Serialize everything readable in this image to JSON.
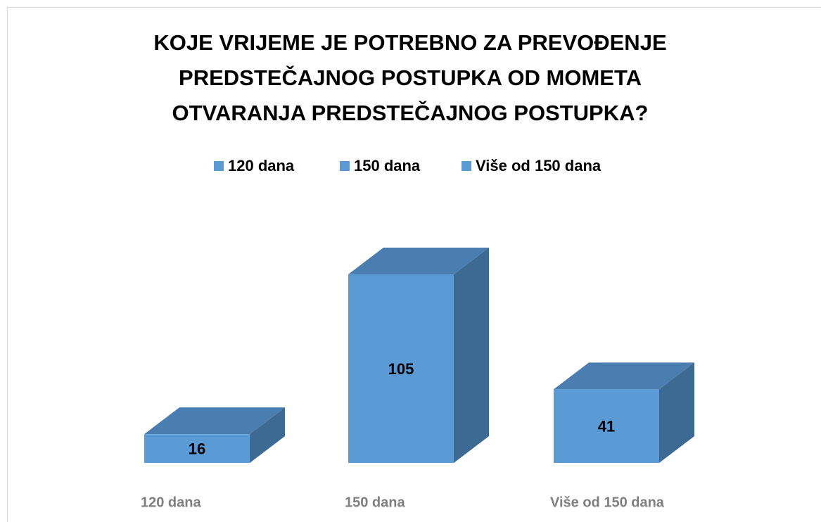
{
  "chart_data": {
    "type": "bar3d",
    "title": "KOJE VRIJEME JE POTREBNO ZA PREVOĐENJE PREDSTEČAJNOG POSTUPKA OD MOMETA OTVARANJA PREDSTEČAJNOG POSTUPKA?",
    "categories": [
      "120 dana",
      "150 dana",
      "Više od 150  dana"
    ],
    "values": [
      16,
      105,
      41
    ],
    "color": "#5b9bd5"
  }
}
